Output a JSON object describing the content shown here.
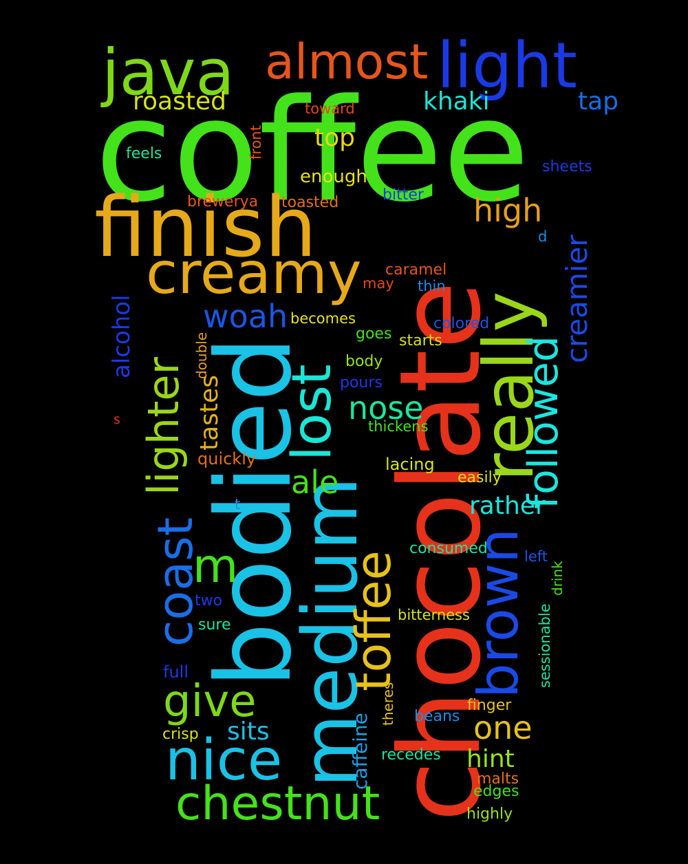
{
  "words": [
    {
      "text": "coffee",
      "color": "#44e21a"
    },
    {
      "text": "chocolate",
      "color": "#e6321a"
    },
    {
      "text": "bodied",
      "color": "#1ac2e6"
    },
    {
      "text": "finish",
      "color": "#e6a91a"
    },
    {
      "text": "medium",
      "color": "#1ac2e6"
    },
    {
      "text": "really",
      "color": "#9ad61a"
    },
    {
      "text": "java",
      "color": "#7ed81a"
    },
    {
      "text": "light",
      "color": "#1a3ae6"
    },
    {
      "text": "almost",
      "color": "#e6561a"
    },
    {
      "text": "creamy",
      "color": "#e6a91a"
    },
    {
      "text": "lost",
      "color": "#1ae6d6"
    },
    {
      "text": "toffee",
      "color": "#e6c21a"
    },
    {
      "text": "brown",
      "color": "#1a4ae6"
    },
    {
      "text": "chestnut",
      "color": "#44e21a"
    },
    {
      "text": "nice",
      "color": "#1ac2e6"
    },
    {
      "text": "coast",
      "color": "#1a6ee6"
    },
    {
      "text": "followed",
      "color": "#1ae6e0"
    },
    {
      "text": "lighter",
      "color": "#9ad61a"
    },
    {
      "text": "give",
      "color": "#7ed81a"
    },
    {
      "text": "creamier",
      "color": "#1a4ae6"
    },
    {
      "text": "m",
      "color": "#44e21a"
    },
    {
      "text": "high",
      "color": "#e6a01a"
    },
    {
      "text": "woah",
      "color": "#1a56e6"
    },
    {
      "text": "nose",
      "color": "#1ae6a0"
    },
    {
      "text": "one",
      "color": "#e6c21a"
    },
    {
      "text": "ale",
      "color": "#44e21a"
    },
    {
      "text": "roasted",
      "color": "#d6e21a"
    },
    {
      "text": "khaki",
      "color": "#1ae6d6"
    },
    {
      "text": "top",
      "color": "#e6d61a"
    },
    {
      "text": "tap",
      "color": "#1a6ee6"
    },
    {
      "text": "rather",
      "color": "#1ae6e0"
    },
    {
      "text": "tastes",
      "color": "#e6b21a"
    },
    {
      "text": "sits",
      "color": "#1ac2e6"
    },
    {
      "text": "hint",
      "color": "#9ae21a"
    },
    {
      "text": "alcohol",
      "color": "#1a3ae6"
    },
    {
      "text": "caffeine",
      "color": "#1aa0e6"
    },
    {
      "text": "enough",
      "color": "#e6e21a"
    },
    {
      "text": "toward",
      "color": "#e6461a"
    },
    {
      "text": "feels",
      "color": "#1ae6a0"
    },
    {
      "text": "front",
      "color": "#e6561a"
    },
    {
      "text": "sheets",
      "color": "#1a3ae6"
    },
    {
      "text": "brewerya",
      "color": "#e6561a"
    },
    {
      "text": "toasted",
      "color": "#e6701a"
    },
    {
      "text": "bitter",
      "color": "#1a3ae6"
    },
    {
      "text": "d",
      "color": "#1a8ee6"
    },
    {
      "text": "caramel",
      "color": "#e6561a"
    },
    {
      "text": "may",
      "color": "#e6461a"
    },
    {
      "text": "thin",
      "color": "#1a8ee6"
    },
    {
      "text": "becomes",
      "color": "#e6e21a"
    },
    {
      "text": "colored",
      "color": "#1a56e6"
    },
    {
      "text": "goes",
      "color": "#44e21a"
    },
    {
      "text": "starts",
      "color": "#d6e21a"
    },
    {
      "text": "double",
      "color": "#e6a01a"
    },
    {
      "text": "body",
      "color": "#9ae21a"
    },
    {
      "text": "pours",
      "color": "#1a3ae6"
    },
    {
      "text": "s",
      "color": "#e6321a"
    },
    {
      "text": "thickens",
      "color": "#44e21a"
    },
    {
      "text": "quickly",
      "color": "#e6701a"
    },
    {
      "text": "lacing",
      "color": "#d6e21a"
    },
    {
      "text": "easily",
      "color": "#d6e21a"
    },
    {
      "text": "t",
      "color": "#1a8ee6"
    },
    {
      "text": "consumed",
      "color": "#1ae6a0"
    },
    {
      "text": "left",
      "color": "#1a56e6"
    },
    {
      "text": "sessionable",
      "color": "#1ae6a0"
    },
    {
      "text": "drink",
      "color": "#44e21a"
    },
    {
      "text": "two",
      "color": "#1a3ae6"
    },
    {
      "text": "bitterness",
      "color": "#d6e21a"
    },
    {
      "text": "sure",
      "color": "#1ae6a0"
    },
    {
      "text": "full",
      "color": "#1a3ae6"
    },
    {
      "text": "theres",
      "color": "#e6c21a"
    },
    {
      "text": "finger",
      "color": "#e6c21a"
    },
    {
      "text": "beans",
      "color": "#1a8ee6"
    },
    {
      "text": "crisp",
      "color": "#d6e21a"
    },
    {
      "text": "recedes",
      "color": "#1ae6a0"
    },
    {
      "text": "malts",
      "color": "#e6701a"
    },
    {
      "text": "edges",
      "color": "#44e21a"
    },
    {
      "text": "highly",
      "color": "#9ae21a"
    }
  ]
}
